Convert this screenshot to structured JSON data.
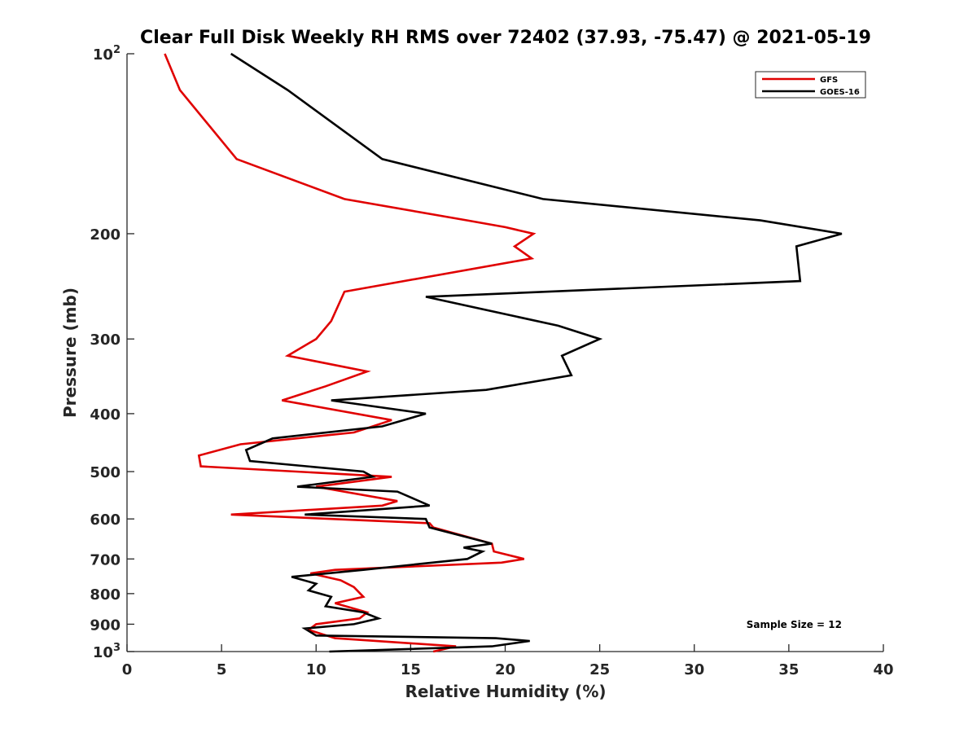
{
  "chart_data": {
    "type": "line",
    "title": "Clear Full Disk Weekly RH RMS over 72402 (37.93, -75.47) @ 2021-05-19",
    "xlabel": "Relative Humidity (%)",
    "ylabel": "Pressure (mb)",
    "xlim": [
      0,
      40
    ],
    "ylim": [
      100,
      1000
    ],
    "yscale": "log",
    "y_reversed": true,
    "grid": false,
    "legend_position": "top-right",
    "x_ticks": [
      0,
      5,
      10,
      15,
      20,
      25,
      30,
      35,
      40
    ],
    "x_tick_labels": [
      "0",
      "5",
      "10",
      "15",
      "20",
      "25",
      "30",
      "35",
      "40"
    ],
    "y_ticks": [
      100,
      200,
      300,
      400,
      500,
      600,
      700,
      800,
      900,
      1000
    ],
    "y_tick_labels": [
      {
        "base": "10",
        "exp": "2"
      },
      {
        "base": "200",
        "exp": ""
      },
      {
        "base": "300",
        "exp": ""
      },
      {
        "base": "400",
        "exp": ""
      },
      {
        "base": "500",
        "exp": ""
      },
      {
        "base": "600",
        "exp": ""
      },
      {
        "base": "700",
        "exp": ""
      },
      {
        "base": "800",
        "exp": ""
      },
      {
        "base": "900",
        "exp": ""
      },
      {
        "base": "10",
        "exp": "3"
      }
    ],
    "annotation": "Sample Size = 12",
    "series": [
      {
        "name": "GFS",
        "color": "#e00000",
        "x": [
          2.0,
          2.8,
          5.8,
          11.5,
          18.0,
          20.0,
          21.5,
          20.5,
          21.4,
          11.5,
          10.8,
          10.0,
          8.5,
          12.7,
          10.5,
          8.2,
          14.0,
          12.0,
          6.0,
          3.8,
          3.9,
          14.0,
          10.0,
          14.3,
          13.5,
          5.5,
          16.0,
          16.2,
          19.3,
          19.4,
          21.0,
          19.8,
          11.0,
          9.7,
          11.3,
          12.0,
          12.5,
          11.0,
          12.7,
          12.3,
          10.0,
          9.6,
          11.0,
          17.4,
          16.2
        ],
        "y": [
          100,
          115,
          150,
          175,
          190,
          195,
          200,
          210,
          220,
          250,
          280,
          300,
          320,
          340,
          360,
          380,
          410,
          430,
          450,
          470,
          490,
          510,
          530,
          560,
          570,
          590,
          610,
          620,
          660,
          680,
          700,
          710,
          730,
          740,
          760,
          780,
          810,
          830,
          860,
          880,
          900,
          920,
          950,
          980,
          1000
        ]
      },
      {
        "name": "GOES-16",
        "color": "#000000",
        "x": [
          5.5,
          8.5,
          13.5,
          22.0,
          33.5,
          37.8,
          35.4,
          35.6,
          15.8,
          22.8,
          25.0,
          23.0,
          23.5,
          19.0,
          10.8,
          15.8,
          13.5,
          7.7,
          6.3,
          6.5,
          12.5,
          13.0,
          9.0,
          14.3,
          16.0,
          9.4,
          15.8,
          16.0,
          19.3,
          17.8,
          18.8,
          18.0,
          12.5,
          8.7,
          10.0,
          9.6,
          10.8,
          10.5,
          12.5,
          13.3,
          12.0,
          9.4,
          10.0,
          19.5,
          21.3,
          19.3,
          10.7
        ],
        "y": [
          100,
          115,
          150,
          175,
          190,
          200,
          210,
          240,
          255,
          285,
          300,
          320,
          345,
          365,
          380,
          400,
          420,
          440,
          460,
          480,
          500,
          510,
          530,
          540,
          570,
          590,
          600,
          620,
          660,
          670,
          680,
          700,
          730,
          750,
          770,
          790,
          810,
          840,
          860,
          880,
          900,
          915,
          940,
          950,
          960,
          980,
          1000
        ]
      }
    ]
  }
}
